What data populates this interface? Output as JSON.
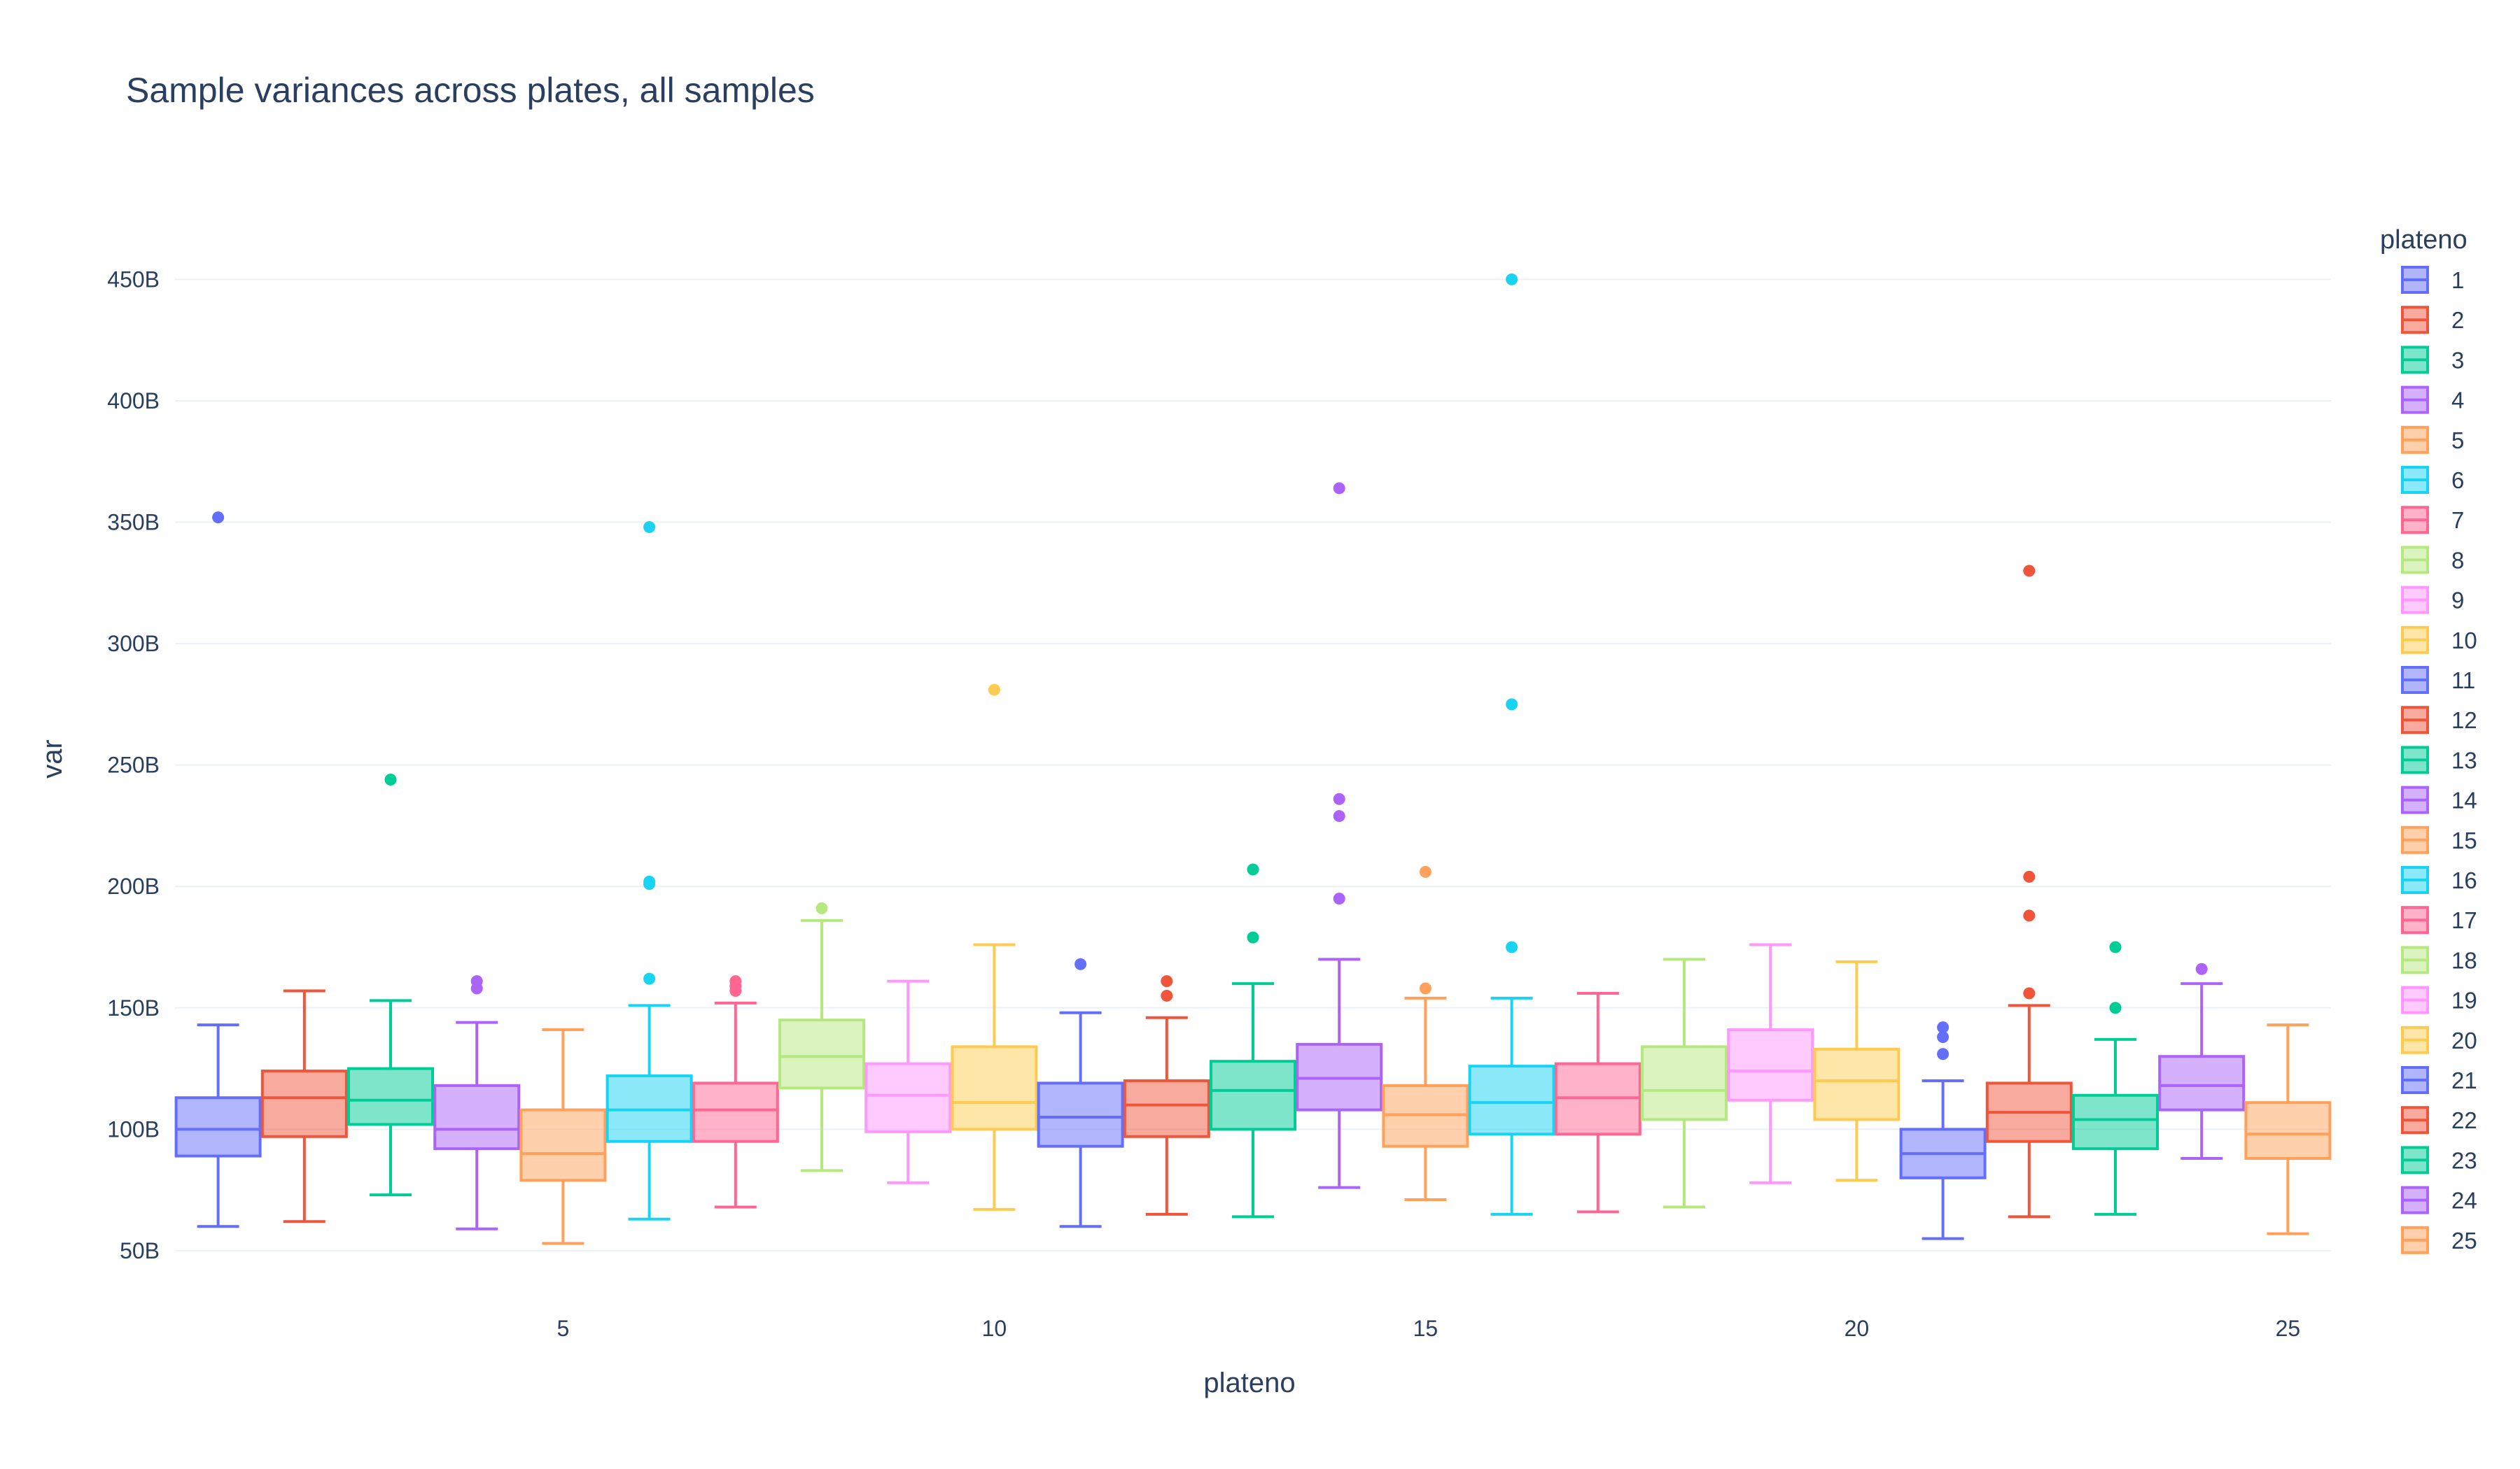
{
  "chart_data": {
    "type": "box",
    "title": "Sample variances across plates, all samples",
    "xlabel": "plateno",
    "ylabel": "var",
    "legend_title": "plateno",
    "legend_position": "right",
    "grid": true,
    "xlim": [
      0.5,
      25.5
    ],
    "ylim": [
      35,
      470
    ],
    "x_ticks": [
      5,
      10,
      15,
      20,
      25
    ],
    "y_ticks": [
      50,
      100,
      150,
      200,
      250,
      300,
      350,
      400,
      450
    ],
    "y_tick_labels": [
      "50B",
      "100B",
      "150B",
      "200B",
      "250B",
      "300B",
      "350B",
      "400B",
      "450B"
    ],
    "series": [
      {
        "name": "1",
        "color": "#636efa",
        "min": 60,
        "q1": 89,
        "median": 100,
        "q3": 113,
        "max": 143,
        "outliers": [
          352
        ]
      },
      {
        "name": "2",
        "color": "#ef553b",
        "min": 62,
        "q1": 97,
        "median": 113,
        "q3": 124,
        "max": 157,
        "outliers": []
      },
      {
        "name": "3",
        "color": "#00cc96",
        "min": 73,
        "q1": 102,
        "median": 112,
        "q3": 125,
        "max": 153,
        "outliers": [
          244
        ]
      },
      {
        "name": "4",
        "color": "#ab63fa",
        "min": 59,
        "q1": 92,
        "median": 100,
        "q3": 118,
        "max": 144,
        "outliers": [
          158,
          161
        ]
      },
      {
        "name": "5",
        "color": "#ffa15a",
        "min": 53,
        "q1": 79,
        "median": 90,
        "q3": 108,
        "max": 141,
        "outliers": []
      },
      {
        "name": "6",
        "color": "#19d3f3",
        "min": 63,
        "q1": 95,
        "median": 108,
        "q3": 122,
        "max": 151,
        "outliers": [
          162,
          201,
          202,
          348
        ]
      },
      {
        "name": "7",
        "color": "#ff6692",
        "min": 68,
        "q1": 95,
        "median": 108,
        "q3": 119,
        "max": 152,
        "outliers": [
          157,
          159,
          161
        ]
      },
      {
        "name": "8",
        "color": "#b6e880",
        "min": 83,
        "q1": 117,
        "median": 130,
        "q3": 145,
        "max": 186,
        "outliers": [
          191
        ]
      },
      {
        "name": "9",
        "color": "#ff97ff",
        "min": 78,
        "q1": 99,
        "median": 114,
        "q3": 127,
        "max": 161,
        "outliers": []
      },
      {
        "name": "10",
        "color": "#fecb52",
        "min": 67,
        "q1": 100,
        "median": 111,
        "q3": 134,
        "max": 176,
        "outliers": [
          281
        ]
      },
      {
        "name": "11",
        "color": "#636efa",
        "min": 60,
        "q1": 93,
        "median": 105,
        "q3": 119,
        "max": 148,
        "outliers": [
          168
        ]
      },
      {
        "name": "12",
        "color": "#ef553b",
        "min": 65,
        "q1": 97,
        "median": 110,
        "q3": 120,
        "max": 146,
        "outliers": [
          155,
          161
        ]
      },
      {
        "name": "13",
        "color": "#00cc96",
        "min": 64,
        "q1": 100,
        "median": 116,
        "q3": 128,
        "max": 160,
        "outliers": [
          179,
          207
        ]
      },
      {
        "name": "14",
        "color": "#ab63fa",
        "min": 76,
        "q1": 108,
        "median": 121,
        "q3": 135,
        "max": 170,
        "outliers": [
          195,
          229,
          236,
          364
        ]
      },
      {
        "name": "15",
        "color": "#ffa15a",
        "min": 71,
        "q1": 93,
        "median": 106,
        "q3": 118,
        "max": 154,
        "outliers": [
          158,
          206
        ]
      },
      {
        "name": "16",
        "color": "#19d3f3",
        "min": 65,
        "q1": 98,
        "median": 111,
        "q3": 126,
        "max": 154,
        "outliers": [
          175,
          275,
          450
        ]
      },
      {
        "name": "17",
        "color": "#ff6692",
        "min": 66,
        "q1": 98,
        "median": 113,
        "q3": 127,
        "max": 156,
        "outliers": []
      },
      {
        "name": "18",
        "color": "#b6e880",
        "min": 68,
        "q1": 104,
        "median": 116,
        "q3": 134,
        "max": 170,
        "outliers": []
      },
      {
        "name": "19",
        "color": "#ff97ff",
        "min": 78,
        "q1": 112,
        "median": 124,
        "q3": 141,
        "max": 176,
        "outliers": []
      },
      {
        "name": "20",
        "color": "#fecb52",
        "min": 79,
        "q1": 104,
        "median": 120,
        "q3": 133,
        "max": 169,
        "outliers": []
      },
      {
        "name": "21",
        "color": "#636efa",
        "min": 55,
        "q1": 80,
        "median": 90,
        "q3": 100,
        "max": 120,
        "outliers": [
          131,
          138,
          142
        ]
      },
      {
        "name": "22",
        "color": "#ef553b",
        "min": 64,
        "q1": 95,
        "median": 107,
        "q3": 119,
        "max": 151,
        "outliers": [
          156,
          188,
          204,
          330
        ]
      },
      {
        "name": "23",
        "color": "#00cc96",
        "min": 65,
        "q1": 92,
        "median": 104,
        "q3": 114,
        "max": 137,
        "outliers": [
          150,
          175
        ]
      },
      {
        "name": "24",
        "color": "#ab63fa",
        "min": 88,
        "q1": 108,
        "median": 118,
        "q3": 130,
        "max": 160,
        "outliers": [
          166
        ]
      },
      {
        "name": "25",
        "color": "#ffa15a",
        "min": 57,
        "q1": 88,
        "median": 98,
        "q3": 111,
        "max": 143,
        "outliers": []
      }
    ]
  }
}
